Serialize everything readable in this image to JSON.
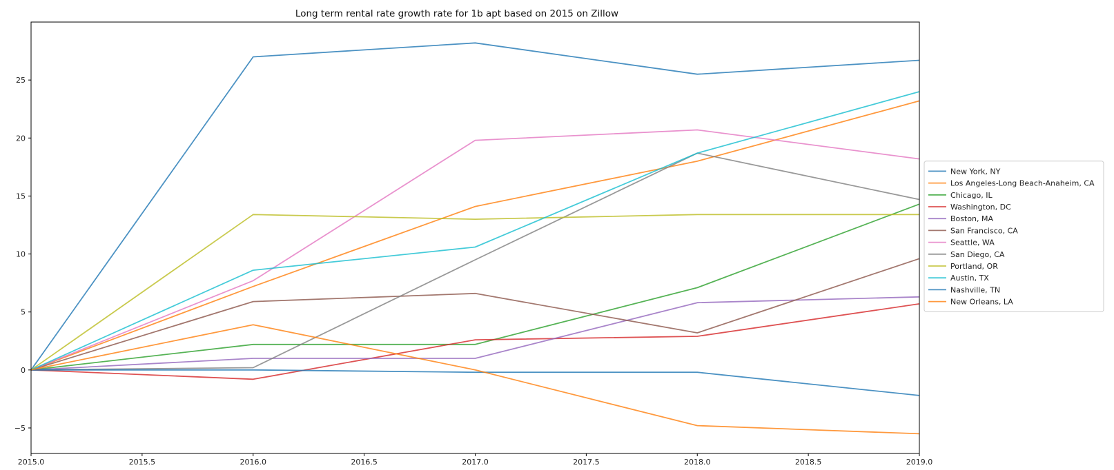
{
  "chart_data": {
    "type": "line",
    "title": "Long term rental rate growth rate for 1b apt based on 2015 on Zillow",
    "xlabel": "",
    "ylabel": "",
    "x": [
      2015.0,
      2016.0,
      2017.0,
      2018.0,
      2019.0
    ],
    "xlim": [
      2015.0,
      2019.0
    ],
    "ylim": [
      -7.2,
      30.0
    ],
    "xticks": [
      2015.0,
      2015.5,
      2016.0,
      2016.5,
      2017.0,
      2017.5,
      2018.0,
      2018.5,
      2019.0
    ],
    "xtick_labels": [
      "2015.0",
      "2015.5",
      "2016.0",
      "2016.5",
      "2017.0",
      "2017.5",
      "2018.0",
      "2018.5",
      "2019.0"
    ],
    "yticks": [
      -5,
      0,
      5,
      10,
      15,
      20,
      25
    ],
    "ytick_labels": [
      "−5",
      "0",
      "5",
      "10",
      "15",
      "20",
      "25"
    ],
    "grid": false,
    "legend_position": "right-outside-center",
    "series": [
      {
        "name": "New York, NY",
        "color": "#1f77b4",
        "values": [
          0,
          27.0,
          28.2,
          25.5,
          26.7
        ]
      },
      {
        "name": "Los Angeles-Long Beach-Anaheim, CA",
        "color": "#ff7f0e",
        "values": [
          0,
          7.2,
          14.1,
          18.0,
          23.2
        ]
      },
      {
        "name": "Chicago, IL",
        "color": "#2ca02c",
        "values": [
          0,
          2.2,
          2.2,
          7.1,
          14.3
        ]
      },
      {
        "name": "Washington, DC",
        "color": "#d62728",
        "values": [
          0,
          -0.8,
          2.6,
          2.9,
          5.7
        ]
      },
      {
        "name": "Boston, MA",
        "color": "#9467bd",
        "values": [
          0,
          1.0,
          1.0,
          5.8,
          6.3
        ]
      },
      {
        "name": "San Francisco, CA",
        "color": "#8c564b",
        "values": [
          0,
          5.9,
          6.6,
          3.2,
          9.6
        ]
      },
      {
        "name": "Seattle, WA",
        "color": "#e377c2",
        "values": [
          0,
          7.7,
          19.8,
          20.7,
          18.2
        ]
      },
      {
        "name": "San Diego, CA",
        "color": "#7f7f7f",
        "values": [
          0,
          0.2,
          9.5,
          18.7,
          14.7
        ]
      },
      {
        "name": "Portland, OR",
        "color": "#bcbd22",
        "values": [
          0,
          13.4,
          13.0,
          13.4,
          13.4
        ]
      },
      {
        "name": "Austin, TX",
        "color": "#17becf",
        "values": [
          0,
          8.6,
          10.6,
          18.7,
          24.0
        ]
      },
      {
        "name": "Nashville, TN",
        "color": "#1f77b4",
        "values": [
          0,
          0.0,
          -0.2,
          -0.2,
          -2.2
        ]
      },
      {
        "name": "New Orleans, LA",
        "color": "#ff7f0e",
        "values": [
          0,
          3.9,
          0.0,
          -4.8,
          -5.5
        ]
      }
    ]
  }
}
